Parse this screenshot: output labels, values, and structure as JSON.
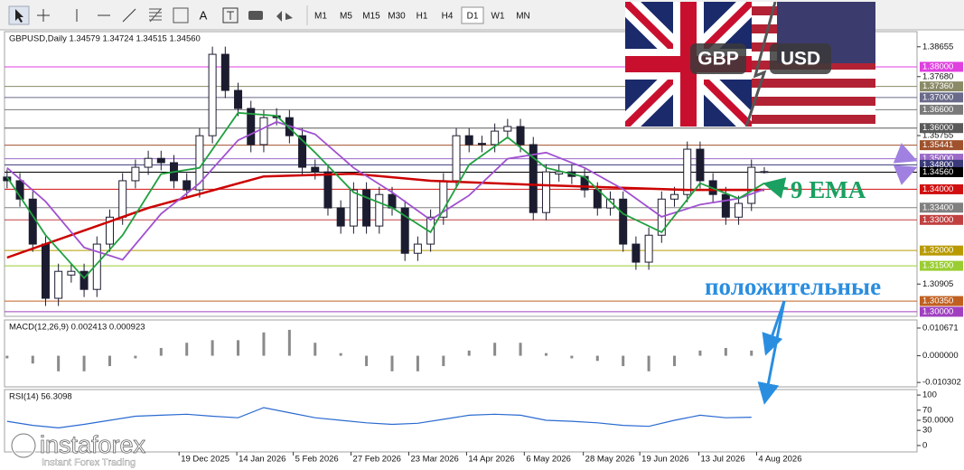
{
  "toolbar": {
    "text_tool": "A",
    "timeframes": [
      "M1",
      "M5",
      "M15",
      "M30",
      "H1",
      "H4",
      "D1",
      "W1",
      "MN"
    ],
    "selected": "D1"
  },
  "banner": {
    "left": "GBP",
    "right": "USD"
  },
  "annotations": {
    "ema": "9 EMA",
    "positive": "положительные"
  },
  "watermark": {
    "brand": "instaforex",
    "tagline": "Instant Forex Trading"
  },
  "chart_data": [
    {
      "type": "candlestick",
      "title": "GBPUSD,Daily  1.34579 1.34724 1.34515 1.34560",
      "color": "#1c1c30",
      "open": [
        1.344,
        1.3428,
        1.3368,
        1.3221,
        1.3044,
        1.312,
        1.3132,
        1.3073,
        1.3221,
        1.3309,
        1.3428,
        1.3472,
        1.3501,
        1.3487,
        1.3428,
        1.3398,
        1.3575,
        1.3841,
        1.3723,
        1.3664,
        1.3546,
        1.364,
        1.3634,
        1.3575,
        1.3472,
        1.3457,
        1.3339,
        1.328,
        1.3398,
        1.328,
        1.3383,
        1.3339,
        1.3191,
        1.3221,
        1.3309,
        1.3428,
        1.3575,
        1.355,
        1.3546,
        1.359,
        1.3605,
        1.3546,
        1.3324,
        1.345,
        1.3457,
        1.3442,
        1.3398,
        1.3339,
        1.3368,
        1.3221,
        1.3162,
        1.325,
        1.3368,
        1.3383,
        1.3531,
        1.3428,
        1.3383,
        1.3309,
        1.3354,
        1.34579
      ],
      "high": [
        1.3465,
        1.3453,
        1.3393,
        1.3246,
        1.3157,
        1.3157,
        1.3157,
        1.3246,
        1.3334,
        1.3453,
        1.3497,
        1.3526,
        1.3526,
        1.3512,
        1.3453,
        1.36,
        1.3866,
        1.3866,
        1.3748,
        1.3689,
        1.3659,
        1.3665,
        1.3659,
        1.36,
        1.3497,
        1.3482,
        1.3364,
        1.3423,
        1.3423,
        1.3408,
        1.3408,
        1.3364,
        1.3246,
        1.3334,
        1.3453,
        1.36,
        1.36,
        1.3575,
        1.3615,
        1.363,
        1.363,
        1.3571,
        1.3482,
        1.3482,
        1.3482,
        1.3467,
        1.3423,
        1.3393,
        1.3393,
        1.3246,
        1.3275,
        1.3393,
        1.3408,
        1.3556,
        1.3556,
        1.3453,
        1.3408,
        1.3379,
        1.3497,
        1.34724
      ],
      "low": [
        1.3403,
        1.3343,
        1.3196,
        1.3019,
        1.3019,
        1.3095,
        1.3048,
        1.3048,
        1.3196,
        1.3284,
        1.3403,
        1.3447,
        1.3462,
        1.3403,
        1.3373,
        1.3373,
        1.355,
        1.3698,
        1.3639,
        1.3521,
        1.3521,
        1.3609,
        1.355,
        1.3447,
        1.3432,
        1.3314,
        1.3255,
        1.3255,
        1.3255,
        1.3255,
        1.3314,
        1.3166,
        1.3166,
        1.3196,
        1.3284,
        1.3403,
        1.3521,
        1.3521,
        1.3521,
        1.3565,
        1.3521,
        1.3299,
        1.3299,
        1.3425,
        1.3417,
        1.3373,
        1.3314,
        1.3314,
        1.3196,
        1.3137,
        1.3137,
        1.3225,
        1.3343,
        1.3358,
        1.3403,
        1.3358,
        1.3284,
        1.3284,
        1.3329,
        1.34515
      ],
      "close": [
        1.3428,
        1.3368,
        1.3221,
        1.3044,
        1.3132,
        1.3132,
        1.3073,
        1.3221,
        1.3309,
        1.3428,
        1.3472,
        1.3501,
        1.3487,
        1.3428,
        1.3398,
        1.3575,
        1.3841,
        1.3723,
        1.3664,
        1.3546,
        1.3634,
        1.3634,
        1.3575,
        1.3472,
        1.3457,
        1.3339,
        1.328,
        1.3398,
        1.328,
        1.3383,
        1.3339,
        1.3191,
        1.3221,
        1.3309,
        1.3428,
        1.3575,
        1.3546,
        1.3546,
        1.359,
        1.3605,
        1.3546,
        1.3324,
        1.3457,
        1.3457,
        1.3442,
        1.3398,
        1.3339,
        1.3368,
        1.3221,
        1.3162,
        1.325,
        1.3368,
        1.3383,
        1.3531,
        1.3428,
        1.3383,
        1.3309,
        1.3354,
        1.3472,
        1.3456
      ],
      "series": [
        {
          "color": "#cc0000",
          "x": [
            0,
            11,
            20,
            27,
            33,
            42,
            53,
            59
          ],
          "values": [
            1.3177,
            1.3339,
            1.3442,
            1.3451,
            1.3428,
            1.3413,
            1.3398,
            1.3398
          ]
        },
        {
          "color": "#a050d0",
          "x": [
            0,
            3,
            6,
            9,
            12,
            15,
            18,
            21,
            24,
            27,
            30,
            33,
            36,
            39,
            42,
            45,
            48,
            51,
            54,
            57,
            59
          ],
          "values": [
            1.347,
            1.336,
            1.321,
            1.317,
            1.332,
            1.342,
            1.356,
            1.362,
            1.358,
            1.347,
            1.339,
            1.33,
            1.338,
            1.35,
            1.352,
            1.347,
            1.34,
            1.331,
            1.335,
            1.337,
            1.34
          ]
        },
        {
          "color": "#20a040",
          "x": [
            0,
            3,
            6,
            9,
            12,
            15,
            18,
            21,
            24,
            27,
            30,
            33,
            36,
            39,
            42,
            45,
            48,
            51,
            54,
            57,
            59
          ],
          "values": [
            1.344,
            1.325,
            1.311,
            1.325,
            1.345,
            1.347,
            1.365,
            1.364,
            1.352,
            1.339,
            1.334,
            1.326,
            1.348,
            1.357,
            1.347,
            1.344,
            1.332,
            1.326,
            1.342,
            1.337,
            1.342
          ]
        }
      ],
      "xlim": [
        -0.2,
        70.9
      ],
      "ylim": [
        1.2985,
        1.3915
      ],
      "xticks": [
        {
          "value": 13.4,
          "label": "19 Dec 2025"
        },
        {
          "value": 17.9,
          "label": "14 Jan 2026"
        },
        {
          "value": 22.3,
          "label": "5 Feb 2026"
        },
        {
          "value": 26.8,
          "label": "27 Feb 2026"
        },
        {
          "value": 31.3,
          "label": "23 Mar 2026"
        },
        {
          "value": 35.8,
          "label": "14 Apr 2026"
        },
        {
          "value": 40.3,
          "label": "6 May 2026"
        },
        {
          "value": 44.9,
          "label": "28 May 2026"
        },
        {
          "value": 49.3,
          "label": "19 Jun 2026"
        },
        {
          "value": 53.9,
          "label": "13 Jul 2026"
        },
        {
          "value": 58.4,
          "label": "4 Aug 2026"
        }
      ],
      "yticks": [
        1.38655,
        {
          "value": 1.3768,
          "label": "1.37680"
        },
        1.35755,
        1.30905
      ],
      "levels": [
        {
          "value": 1.38,
          "label": "1.38000",
          "color": "#e040e0"
        },
        {
          "value": 1.3736,
          "label": "1.37360",
          "color": "#8a8a66"
        },
        {
          "value": 1.37,
          "label": "1.37000",
          "color": "#6a6a8a"
        },
        {
          "value": 1.366,
          "label": "1.36600",
          "color": "#7a7a7a"
        },
        {
          "value": 1.36,
          "label": "1.36000",
          "color": "#5a5a5a"
        },
        {
          "value": 1.35441,
          "label": "1.35441",
          "color": "#a0522d"
        },
        {
          "value": 1.35,
          "label": "1.35000",
          "color": "#9c6ac9"
        },
        {
          "value": 1.348,
          "label": "1.34800",
          "color": "#3a3a7a"
        },
        {
          "value": 1.3456,
          "label": "1.34560",
          "color": "#000000"
        },
        {
          "value": 1.34,
          "label": "1.34000",
          "color": "#d01010"
        },
        {
          "value": 1.334,
          "label": "1.33400",
          "color": "#808080"
        },
        {
          "value": 1.33,
          "label": "1.33000",
          "color": "#c04040"
        },
        {
          "value": 1.32,
          "label": "1.32000",
          "color": "#b89a00"
        },
        {
          "value": 1.315,
          "label": "1.31500",
          "color": "#9acd32"
        },
        {
          "value": 1.3035,
          "label": "1.30350",
          "color": "#c06020"
        },
        {
          "value": 1.3,
          "label": "1.30000",
          "color": "#a040c0"
        }
      ]
    },
    {
      "type": "bar",
      "title": "MACD(12,26,9) 0.002413 0.000923",
      "color": "#8a8a8a",
      "x": [
        0,
        2,
        4,
        6,
        8,
        10,
        12,
        14,
        16,
        18,
        20,
        22,
        24,
        26,
        28,
        30,
        32,
        34,
        36,
        38,
        40,
        42,
        44,
        46,
        48,
        50,
        52,
        54,
        56,
        58
      ],
      "values": [
        -0.001,
        -0.003,
        -0.006,
        -0.006,
        -0.004,
        -0.001,
        0.003,
        0.005,
        0.006,
        0.006,
        0.009,
        0.01,
        0.005,
        0.001,
        -0.004,
        -0.006,
        -0.006,
        -0.004,
        0.002,
        0.005,
        0.005,
        0.001,
        -0.001,
        -0.002,
        -0.004,
        -0.006,
        -0.004,
        0.002,
        0.003,
        0.002
      ],
      "xlim": [
        -0.2,
        70.9
      ],
      "ylim": [
        -0.012,
        0.0138
      ],
      "yticks": [
        0.010671,
        {
          "value": 0,
          "label": "0.000000"
        },
        -0.010302
      ]
    },
    {
      "type": "line",
      "title": "RSI(14) 56.3098",
      "color": "#2a6ad0",
      "x": [
        0,
        2,
        4,
        6,
        8,
        10,
        12,
        14,
        16,
        18,
        20,
        22,
        24,
        26,
        28,
        30,
        32,
        34,
        36,
        38,
        40,
        42,
        44,
        46,
        48,
        50,
        52,
        54,
        56,
        58
      ],
      "values": [
        48,
        40,
        35,
        42,
        50,
        58,
        60,
        62,
        58,
        55,
        75,
        65,
        55,
        50,
        45,
        42,
        44,
        52,
        60,
        62,
        60,
        50,
        48,
        45,
        40,
        38,
        50,
        60,
        55,
        56
      ],
      "xlim": [
        -0.2,
        70.9
      ],
      "ylim": [
        -12.7,
        110.9
      ],
      "yticks": [
        100,
        70,
        {
          "value": 50,
          "label": "50.0000"
        },
        30,
        0
      ]
    }
  ]
}
